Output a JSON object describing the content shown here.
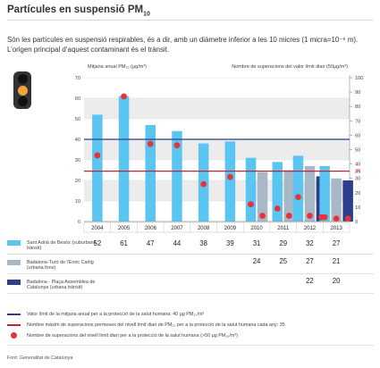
{
  "title": {
    "text": "Partícules en suspensió PM",
    "sub": "10"
  },
  "intro": "Són les partícules en suspensió respirables, és a dir, amb un diàmetre inferior a les 10 micres (1 micra=10⁻⁶ m). L’origen principal d’aquest contaminant és el trànsit.",
  "icon": "traffic-light-icon",
  "chart_data": {
    "type": "bar",
    "title": "",
    "ylabel": "Mitjana anual PM₁₀ (µg/m³)",
    "y2label": "Nombre de superacions del valor límit diari (50µg/m³)",
    "ylim": [
      0,
      70
    ],
    "y_ticks": [
      0,
      10,
      20,
      30,
      40,
      50,
      60,
      70
    ],
    "y2lim": [
      0,
      100
    ],
    "y2_ticks": [
      0,
      10,
      20,
      30,
      40,
      50,
      60,
      70,
      80,
      90,
      100
    ],
    "y2_extra_tick": 35,
    "categories": [
      "2004",
      "2005",
      "2006",
      "2007",
      "2008",
      "2009",
      "2010",
      "2011",
      "2012",
      "2013"
    ],
    "series": [
      {
        "name": "Sant Adrià de Besòs (suburbana trànsit)",
        "color": "#5bc5f2",
        "values": [
          52,
          61,
          47,
          44,
          38,
          39,
          31,
          29,
          32,
          27
        ]
      },
      {
        "name": "Badalona-Turó de l’Enric Carlig (urbana fons)",
        "color": "#a9b8c6",
        "values": [
          null,
          null,
          null,
          null,
          null,
          null,
          24,
          25,
          27,
          21
        ]
      },
      {
        "name": "Badalona - Plaça Assemblea de Catalunya (urbana trànsit)",
        "color": "#2c3e8c",
        "values": [
          null,
          null,
          null,
          null,
          null,
          null,
          null,
          null,
          22,
          20
        ]
      }
    ],
    "exceedances": [
      {
        "category": "2004",
        "station": 0,
        "value": 46
      },
      {
        "category": "2005",
        "station": 0,
        "value": 87
      },
      {
        "category": "2006",
        "station": 0,
        "value": 54
      },
      {
        "category": "2007",
        "station": 0,
        "value": 53
      },
      {
        "category": "2008",
        "station": 0,
        "value": 26
      },
      {
        "category": "2009",
        "station": 0,
        "value": 31
      },
      {
        "category": "2010",
        "station": 0,
        "value": 12
      },
      {
        "category": "2010",
        "station": 1,
        "value": 4
      },
      {
        "category": "2011",
        "station": 0,
        "value": 9
      },
      {
        "category": "2011",
        "station": 1,
        "value": 4
      },
      {
        "category": "2012",
        "station": 0,
        "value": 17
      },
      {
        "category": "2012",
        "station": 1,
        "value": 4
      },
      {
        "category": "2012",
        "station": 2,
        "value": 3
      },
      {
        "category": "2013",
        "station": 0,
        "value": 3
      },
      {
        "category": "2013",
        "station": 1,
        "value": 2
      },
      {
        "category": "2013",
        "station": 2,
        "value": 2
      }
    ],
    "annual_limit": {
      "value": 40,
      "color": "#2c3e8c",
      "label": "Valor límit de la mitjana anual per a la protecció de la salut humana: 40 µg PM₁₀/m³"
    },
    "daily_exceedance_limit": {
      "value": 35,
      "color": "#c8202e",
      "label": "Nombre màxim de superacions permeses del nivell límit diari de PM₁₀ per a la protecció de la salut humana cada any: 35"
    },
    "dot_legend": {
      "color": "#e8323b",
      "label": "Nombre de superacions del nivell límit diari per a la protecció de la salut humana (>50 µg PM₁₀/m³)"
    },
    "table": {
      "rows": [
        {
          "values": [
            "52",
            "61",
            "47",
            "44",
            "38",
            "39",
            "31",
            "29",
            "32",
            "27"
          ]
        },
        {
          "values": [
            "",
            "",
            "",
            "",
            "",
            "",
            "24",
            "25",
            "27",
            "21"
          ]
        },
        {
          "values": [
            "",
            "",
            "",
            "",
            "",
            "",
            "",
            "",
            "22",
            "20"
          ]
        }
      ]
    },
    "grid": true,
    "legend": "bottom-left"
  },
  "source": "Font: Generalitat de Catalunya"
}
